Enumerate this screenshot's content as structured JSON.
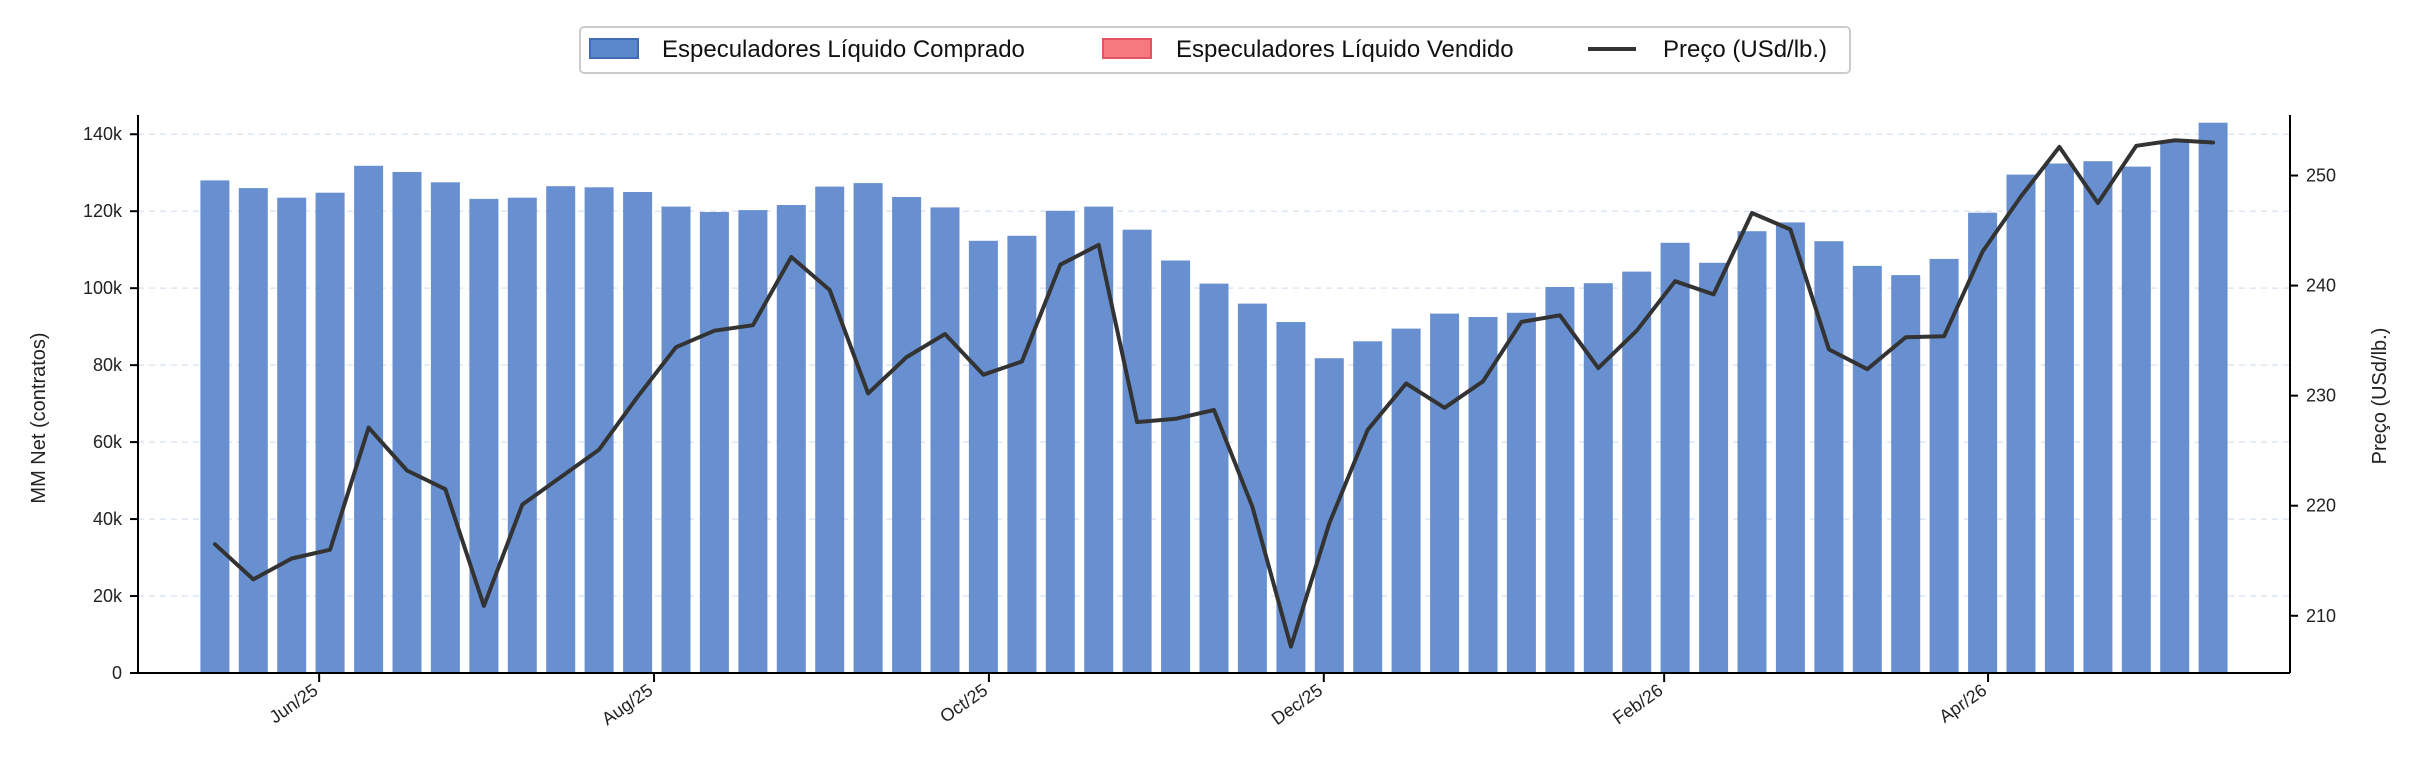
{
  "colors": {
    "net_long": "#5b87cc",
    "net_short": "#f47a80",
    "price_line": "#333333",
    "grid": "#dce6f5"
  },
  "legend": {
    "position": "top-center",
    "items": [
      {
        "label": "Especuladores Líquido Comprado",
        "kind": "patch",
        "color": "#5b87cc"
      },
      {
        "label": "Especuladores Líquido Vendido",
        "kind": "patch",
        "color": "#f47a80"
      },
      {
        "label": "Preço (USd/lb.)",
        "kind": "line",
        "color": "#333333"
      }
    ]
  },
  "chart_data": {
    "type": "bar",
    "title": "",
    "xlabel": "",
    "ylabel": "MM Net (contratos)",
    "y2label": "Preço (USd/lb.)",
    "ylim": [
      0,
      145000
    ],
    "y2lim": [
      204.8,
      255.5
    ],
    "yticks": [
      0,
      20000,
      40000,
      60000,
      80000,
      100000,
      120000,
      140000
    ],
    "ytick_labels": [
      "0",
      "20k",
      "40k",
      "60k",
      "80k",
      "100k",
      "120k",
      "140k"
    ],
    "y2ticks": [
      210,
      220,
      230,
      240,
      250
    ],
    "y2tick_labels": [
      "210",
      "220",
      "230",
      "240",
      "250"
    ],
    "grid": "horizontal dashed",
    "x_range": [
      "2025-04-29",
      "2026-05-26"
    ],
    "xticks": [
      {
        "date": "2025-06-01",
        "label": "Jun/25"
      },
      {
        "date": "2025-08-01",
        "label": "Aug/25"
      },
      {
        "date": "2025-10-01",
        "label": "Oct/25"
      },
      {
        "date": "2025-12-01",
        "label": "Dec/25"
      },
      {
        "date": "2026-02-01",
        "label": "Feb/26"
      },
      {
        "date": "2026-04-01",
        "label": "Apr/26"
      }
    ],
    "dates": [
      "2025-05-13",
      "2025-05-20",
      "2025-05-27",
      "2025-06-03",
      "2025-06-10",
      "2025-06-17",
      "2025-06-24",
      "2025-07-01",
      "2025-07-08",
      "2025-07-15",
      "2025-07-22",
      "2025-07-29",
      "2025-08-05",
      "2025-08-12",
      "2025-08-19",
      "2025-08-26",
      "2025-09-02",
      "2025-09-09",
      "2025-09-16",
      "2025-09-23",
      "2025-09-30",
      "2025-10-07",
      "2025-10-14",
      "2025-10-21",
      "2025-10-28",
      "2025-11-04",
      "2025-11-11",
      "2025-11-18",
      "2025-11-25",
      "2025-12-02",
      "2025-12-09",
      "2025-12-16",
      "2025-12-23",
      "2025-12-30",
      "2026-01-06",
      "2026-01-13",
      "2026-01-20",
      "2026-01-27",
      "2026-02-03",
      "2026-02-10",
      "2026-02-17",
      "2026-02-24",
      "2026-03-03",
      "2026-03-10",
      "2026-03-17",
      "2026-03-24",
      "2026-03-31",
      "2026-04-07",
      "2026-04-14",
      "2026-04-21",
      "2026-04-28",
      "2026-05-05",
      "2026-05-12"
    ],
    "series": [
      {
        "name": "Especuladores Líquido Comprado",
        "type": "bar",
        "axis": "left",
        "values": [
          128000,
          126000,
          123500,
          124800,
          131800,
          130200,
          127500,
          123200,
          123500,
          126500,
          126200,
          125000,
          121200,
          119800,
          120300,
          121600,
          126400,
          127300,
          123700,
          121000,
          112300,
          113600,
          120100,
          121200,
          115200,
          107200,
          101200,
          96000,
          91200,
          81800,
          86200,
          89500,
          93400,
          92500,
          93600,
          100300,
          101300,
          104300,
          111800,
          106600,
          114800,
          117100,
          112200,
          105800,
          103400,
          107600,
          119600,
          129500,
          132400,
          133000,
          131600,
          138000,
          143000
        ]
      },
      {
        "name": "Especuladores Líquido Vendido",
        "type": "bar",
        "axis": "left",
        "values": [
          0,
          0,
          0,
          0,
          0,
          0,
          0,
          0,
          0,
          0,
          0,
          0,
          0,
          0,
          0,
          0,
          0,
          0,
          0,
          0,
          0,
          0,
          0,
          0,
          0,
          0,
          0,
          0,
          0,
          0,
          0,
          0,
          0,
          0,
          0,
          0,
          0,
          0,
          0,
          0,
          0,
          0,
          0,
          0,
          0,
          0,
          0,
          0,
          0,
          0,
          0,
          0,
          0
        ]
      },
      {
        "name": "Preço (USd/lb.)",
        "type": "line",
        "axis": "right",
        "values": [
          216.5,
          213.3,
          215.2,
          216.0,
          227.1,
          223.2,
          221.5,
          210.9,
          220.1,
          222.6,
          225.1,
          229.9,
          234.4,
          235.9,
          236.4,
          242.6,
          239.6,
          230.2,
          233.5,
          235.6,
          231.9,
          233.1,
          241.9,
          243.7,
          227.6,
          227.9,
          228.7,
          219.9,
          207.2,
          218.4,
          226.9,
          231.1,
          228.9,
          231.3,
          236.7,
          237.3,
          232.5,
          235.9,
          240.4,
          239.2,
          246.6,
          245.1,
          234.2,
          232.4,
          235.3,
          235.4,
          243.1,
          248.1,
          252.6,
          247.5,
          252.7,
          253.2,
          253.0
        ]
      }
    ]
  }
}
